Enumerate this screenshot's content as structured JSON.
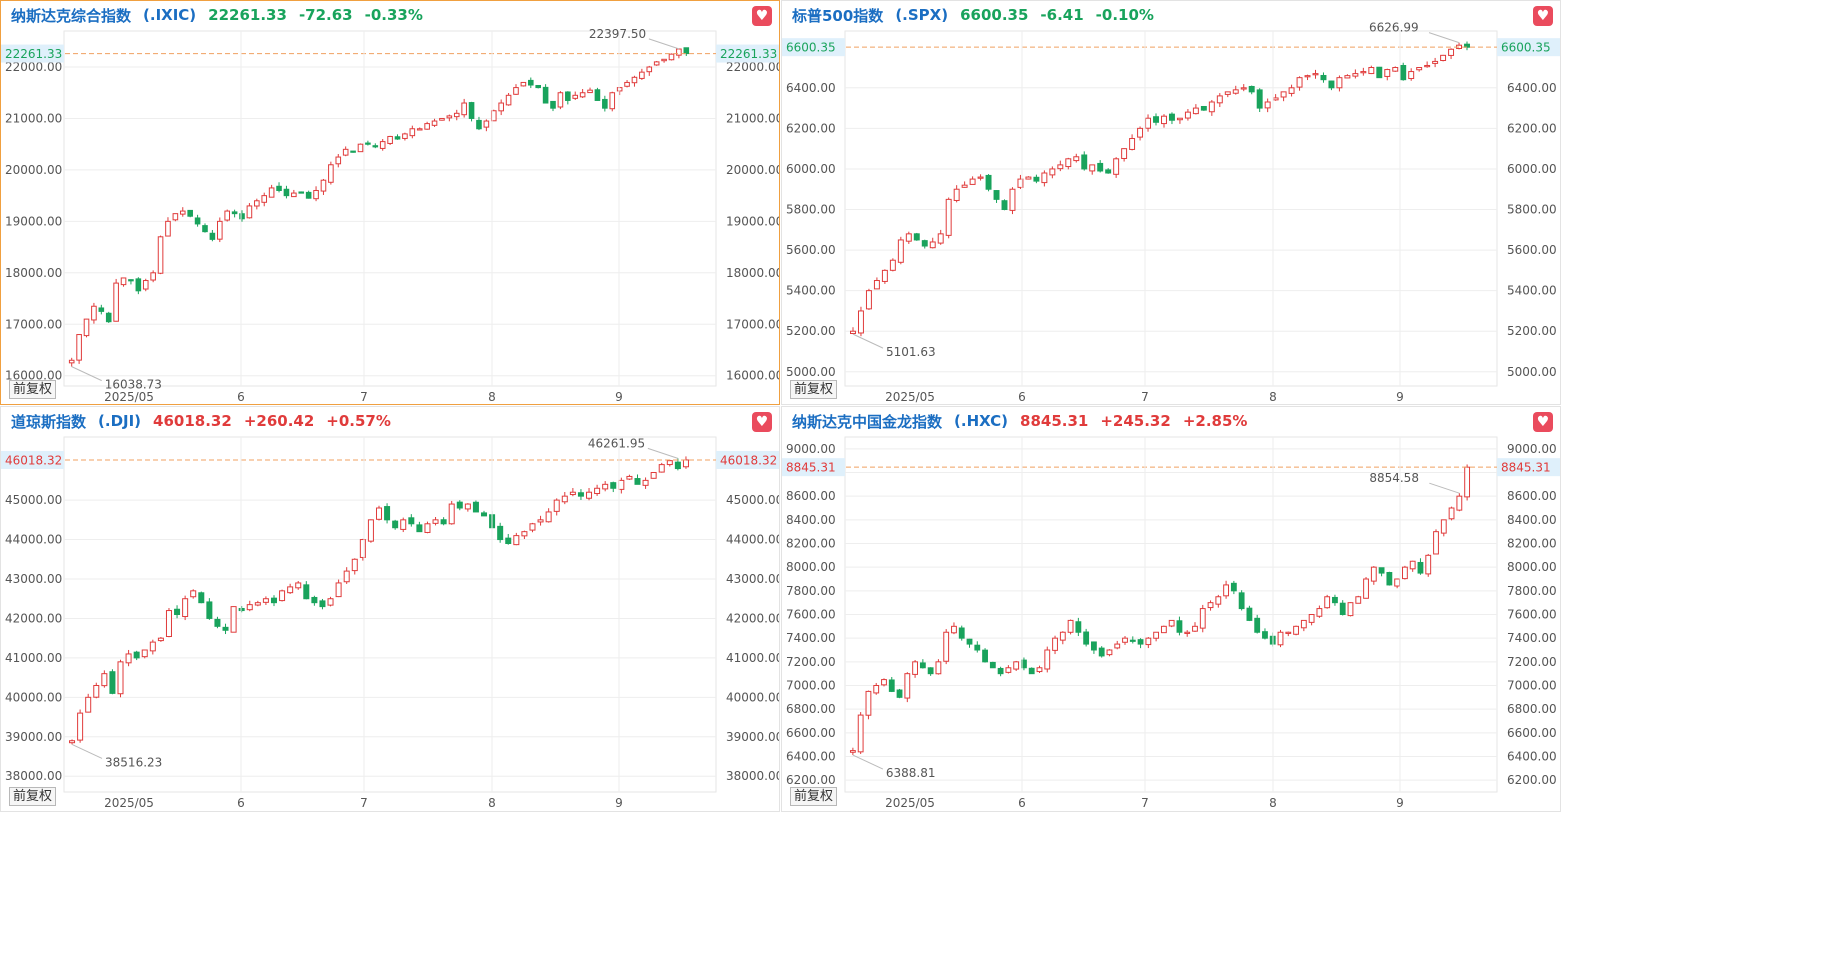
{
  "chart_data": [
    {
      "type": "candlestick",
      "name": "纳斯达克综合指数",
      "code": "(.IXIC)",
      "last": "22261.33",
      "change": "-72.63",
      "change_pct": "-0.33%",
      "direction": "down",
      "ylim": [
        15800,
        22700
      ],
      "yticks": [
        16000,
        17000,
        18000,
        19000,
        20000,
        21000,
        22000
      ],
      "ytick_labels": [
        "16000.00",
        "17000.00",
        "18000.00",
        "19000.00",
        "20000.00",
        "21000.00",
        "22000.00"
      ],
      "x_ticks": [
        "2025/05",
        "6",
        "7",
        "8",
        "9"
      ],
      "x_tick_index": [
        3,
        23,
        42,
        64,
        84
      ],
      "high_label": "22397.50",
      "high_index": 97,
      "low_label": "16038.73",
      "low_index": 0,
      "last_label": "22261.33",
      "closes": [
        16300,
        16800,
        17100,
        17350,
        17250,
        17050,
        17800,
        17900,
        17850,
        17650,
        17850,
        18000,
        18700,
        19000,
        19150,
        19200,
        19100,
        18950,
        18800,
        18650,
        19000,
        19200,
        19150,
        19050,
        19300,
        19400,
        19500,
        19650,
        19600,
        19500,
        19550,
        19550,
        19450,
        19600,
        19800,
        20100,
        20250,
        20400,
        20350,
        20500,
        20500,
        20450,
        20550,
        20650,
        20600,
        20700,
        20800,
        20800,
        20900,
        20950,
        21000,
        21050,
        21100,
        21300,
        21000,
        20800,
        20950,
        21150,
        21300,
        21450,
        21600,
        21700,
        21650,
        21600,
        21300,
        21200,
        21500,
        21350,
        21450,
        21500,
        21550,
        21350,
        21200,
        21500,
        21600,
        21700,
        21800,
        21900,
        22000,
        22100,
        22150,
        22250,
        22350,
        22261
      ]
    },
    {
      "type": "candlestick",
      "name": "标普500指数",
      "code": "(.SPX)",
      "last": "6600.35",
      "change": "-6.41",
      "change_pct": "-0.10%",
      "direction": "down",
      "ylim": [
        4930,
        6680
      ],
      "yticks": [
        5000,
        5200,
        5400,
        5600,
        5800,
        6000,
        6200,
        6400
      ],
      "ytick_labels": [
        "5000.00",
        "5200.00",
        "5400.00",
        "5600.00",
        "5800.00",
        "6000.00",
        "6200.00",
        "6400.00"
      ],
      "x_ticks": [
        "2025/05",
        "6",
        "7",
        "8",
        "9"
      ],
      "x_tick_index": [
        7,
        24,
        43,
        64,
        84
      ],
      "high_label": "6626.99",
      "high_index": 96,
      "low_label": "5101.63",
      "low_index": 0,
      "last_label": "6600.35",
      "closes": [
        5200,
        5300,
        5400,
        5450,
        5500,
        5550,
        5650,
        5680,
        5650,
        5620,
        5640,
        5680,
        5850,
        5900,
        5920,
        5950,
        5960,
        5900,
        5850,
        5800,
        5900,
        5950,
        5960,
        5940,
        5980,
        6000,
        6020,
        6050,
        6060,
        6000,
        6020,
        5990,
        5980,
        6050,
        6100,
        6150,
        6200,
        6250,
        6230,
        6260,
        6240,
        6250,
        6280,
        6300,
        6290,
        6330,
        6360,
        6380,
        6390,
        6400,
        6380,
        6300,
        6330,
        6350,
        6380,
        6400,
        6450,
        6460,
        6470,
        6440,
        6400,
        6450,
        6460,
        6470,
        6480,
        6500,
        6450,
        6490,
        6500,
        6440,
        6480,
        6500,
        6510,
        6530,
        6560,
        6590,
        6610,
        6600
      ]
    },
    {
      "type": "candlestick",
      "name": "道琼斯指数",
      "code": "(.DJI)",
      "last": "46018.32",
      "change": "+260.42",
      "change_pct": "+0.57%",
      "direction": "up",
      "ylim": [
        37600,
        46600
      ],
      "yticks": [
        38000,
        39000,
        40000,
        41000,
        42000,
        43000,
        44000,
        45000
      ],
      "ytick_labels": [
        "38000.00",
        "39000.00",
        "40000.00",
        "41000.00",
        "42000.00",
        "43000.00",
        "44000.00",
        "45000.00"
      ],
      "x_ticks": [
        "2025/05",
        "6",
        "7",
        "8",
        "9"
      ],
      "x_tick_index": [
        3,
        23,
        42,
        64,
        84
      ],
      "high_label": "46261.95",
      "high_index": 97,
      "low_label": "38516.23",
      "low_index": 0,
      "last_label": "46018.32",
      "closes": [
        38900,
        39600,
        40000,
        40300,
        40600,
        40100,
        40900,
        41100,
        41000,
        41200,
        41400,
        41500,
        42200,
        42100,
        42500,
        42700,
        42400,
        42000,
        41800,
        41700,
        42300,
        42200,
        42350,
        42400,
        42500,
        42400,
        42700,
        42800,
        42900,
        42500,
        42400,
        42300,
        42500,
        42900,
        43200,
        43500,
        44000,
        44500,
        44800,
        44500,
        44300,
        44500,
        44400,
        44200,
        44400,
        44500,
        44400,
        44900,
        44800,
        44900,
        44700,
        44600,
        44300,
        44000,
        43900,
        44100,
        44200,
        44400,
        44500,
        44700,
        45000,
        45100,
        45200,
        45100,
        45200,
        45300,
        45400,
        45300,
        45500,
        45600,
        45400,
        45500,
        45700,
        45900,
        46000,
        45800,
        46018
      ]
    },
    {
      "type": "candlestick",
      "name": "纳斯达克中国金龙指数",
      "code": "(.HXC)",
      "last": "8845.31",
      "change": "+245.32",
      "change_pct": "+2.85%",
      "direction": "up",
      "ylim": [
        6100,
        9100
      ],
      "yticks": [
        6200,
        6400,
        6600,
        6800,
        7000,
        7200,
        7400,
        7600,
        7800,
        8000,
        8200,
        8400,
        8600,
        8800,
        9000
      ],
      "ytick_labels": [
        "6200.00",
        "6400.00",
        "6600.00",
        "6800.00",
        "7000.00",
        "7200.00",
        "7400.00",
        "7600.00",
        "7800.00",
        "8000.00",
        "8200.00",
        "8400.00",
        "8600.00",
        "",
        "9000.00"
      ],
      "x_ticks": [
        "2025/05",
        "6",
        "7",
        "8",
        "9"
      ],
      "x_tick_index": [
        7,
        24,
        43,
        64,
        84
      ],
      "high_label": "8854.58",
      "high_index": 97,
      "low_label": "6388.81",
      "low_index": 0,
      "last_label": "8845.31",
      "closes": [
        6450,
        6750,
        6950,
        7000,
        7050,
        6950,
        6900,
        7100,
        7200,
        7150,
        7100,
        7200,
        7450,
        7500,
        7400,
        7350,
        7300,
        7200,
        7150,
        7100,
        7150,
        7200,
        7150,
        7100,
        7150,
        7300,
        7400,
        7450,
        7550,
        7450,
        7350,
        7300,
        7250,
        7300,
        7350,
        7400,
        7380,
        7350,
        7400,
        7450,
        7500,
        7550,
        7450,
        7450,
        7500,
        7650,
        7700,
        7750,
        7850,
        7800,
        7650,
        7550,
        7450,
        7400,
        7350,
        7450,
        7450,
        7500,
        7550,
        7600,
        7650,
        7750,
        7700,
        7600,
        7700,
        7750,
        7900,
        8000,
        7950,
        7850,
        7900,
        8000,
        8050,
        7950,
        8100,
        8300,
        8400,
        8500,
        8600,
        8845
      ]
    }
  ],
  "fq_label": "前复权",
  "fav_icon": "♥",
  "colors": {
    "up": "#e03b3b",
    "down": "#19a35c",
    "price_line": "#f0a060",
    "highlight": "#dff0fb"
  }
}
